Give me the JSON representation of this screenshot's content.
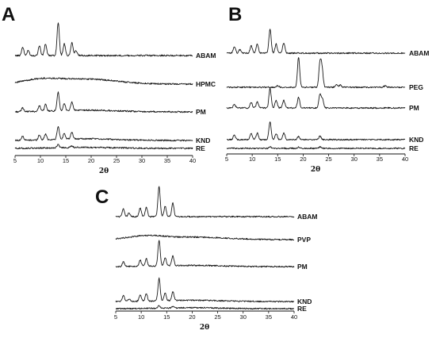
{
  "panels": [
    {
      "letter": "A",
      "chart_data": {
        "type": "line",
        "xlabel": "2θ",
        "xlim": [
          5,
          40
        ],
        "xticks": [
          5,
          10,
          15,
          20,
          25,
          30,
          35,
          40
        ],
        "series": [
          {
            "name": "ABAM",
            "peaks": [
              [
                6.5,
                0.25
              ],
              [
                7.6,
                0.15
              ],
              [
                9.8,
                0.3
              ],
              [
                11.0,
                0.35
              ],
              [
                13.5,
                1.0
              ],
              [
                14.7,
                0.35
              ],
              [
                16.2,
                0.4
              ],
              [
                17.0,
                0.15
              ]
            ]
          },
          {
            "name": "HPMC",
            "peaks": [],
            "halo": [
              [
                10,
                0.12,
                3.5
              ],
              [
                19,
                0.15,
                6
              ]
            ]
          },
          {
            "name": "PM",
            "peaks": [
              [
                6.5,
                0.12
              ],
              [
                9.8,
                0.18
              ],
              [
                11.0,
                0.2
              ],
              [
                13.5,
                0.55
              ],
              [
                14.7,
                0.2
              ],
              [
                16.2,
                0.25
              ]
            ],
            "halo": [
              [
                19,
                0.05,
                6
              ]
            ]
          },
          {
            "name": "KND",
            "peaks": [
              [
                6.5,
                0.12
              ],
              [
                9.8,
                0.15
              ],
              [
                11.0,
                0.17
              ],
              [
                13.5,
                0.38
              ],
              [
                14.7,
                0.18
              ],
              [
                16.2,
                0.2
              ]
            ],
            "halo": [
              [
                19,
                0.05,
                6
              ]
            ]
          },
          {
            "name": "RE",
            "peaks": [
              [
                13.5,
                0.1
              ],
              [
                16.2,
                0.05
              ]
            ],
            "halo": [
              [
                19,
                0.03,
                6
              ]
            ]
          }
        ]
      }
    },
    {
      "letter": "B",
      "chart_data": {
        "type": "line",
        "xlabel": "2θ",
        "xlim": [
          5,
          40
        ],
        "xticks": [
          5,
          10,
          15,
          20,
          25,
          30,
          35,
          40
        ],
        "series": [
          {
            "name": "ABAM",
            "peaks": [
              [
                6.5,
                0.22
              ],
              [
                7.6,
                0.12
              ],
              [
                9.8,
                0.25
              ],
              [
                11.0,
                0.3
              ],
              [
                13.5,
                0.8
              ],
              [
                14.7,
                0.3
              ],
              [
                16.2,
                0.35
              ]
            ]
          },
          {
            "name": "PEG",
            "peaks": [
              [
                15.0,
                0.06
              ],
              [
                19.1,
                1.0
              ],
              [
                23.3,
                0.8
              ],
              [
                23.7,
                0.6
              ],
              [
                26.5,
                0.1
              ],
              [
                27.3,
                0.08
              ],
              [
                36.1,
                0.05
              ]
            ]
          },
          {
            "name": "PM",
            "peaks": [
              [
                6.5,
                0.12
              ],
              [
                9.8,
                0.18
              ],
              [
                11.0,
                0.2
              ],
              [
                13.5,
                0.65
              ],
              [
                14.7,
                0.25
              ],
              [
                16.2,
                0.25
              ],
              [
                19.1,
                0.35
              ],
              [
                23.3,
                0.45
              ],
              [
                23.8,
                0.3
              ]
            ]
          },
          {
            "name": "KND",
            "peaks": [
              [
                6.5,
                0.15
              ],
              [
                9.8,
                0.2
              ],
              [
                11.0,
                0.22
              ],
              [
                13.5,
                0.6
              ],
              [
                14.7,
                0.2
              ],
              [
                16.2,
                0.22
              ],
              [
                19.1,
                0.1
              ],
              [
                23.3,
                0.12
              ]
            ]
          },
          {
            "name": "RE",
            "peaks": [
              [
                13.5,
                0.06
              ],
              [
                19.1,
                0.04
              ],
              [
                23.3,
                0.05
              ]
            ]
          }
        ]
      }
    },
    {
      "letter": "C",
      "chart_data": {
        "type": "line",
        "xlabel": "2θ",
        "xlim": [
          5,
          40
        ],
        "xticks": [
          5,
          10,
          15,
          20,
          25,
          30,
          35,
          40
        ],
        "series": [
          {
            "name": "ABAM",
            "peaks": [
              [
                6.5,
                0.25
              ],
              [
                7.6,
                0.12
              ],
              [
                9.8,
                0.28
              ],
              [
                11.0,
                0.32
              ],
              [
                13.5,
                1.0
              ],
              [
                14.7,
                0.35
              ],
              [
                16.2,
                0.45
              ]
            ]
          },
          {
            "name": "PVP",
            "peaks": [],
            "halo": [
              [
                11,
                0.12,
                3.5
              ],
              [
                21,
                0.08,
                6
              ]
            ]
          },
          {
            "name": "PM",
            "peaks": [
              [
                6.5,
                0.15
              ],
              [
                9.8,
                0.2
              ],
              [
                11.0,
                0.25
              ],
              [
                13.5,
                0.85
              ],
              [
                14.7,
                0.28
              ],
              [
                16.2,
                0.32
              ]
            ],
            "halo": [
              [
                20,
                0.04,
                6
              ]
            ]
          },
          {
            "name": "KND",
            "peaks": [
              [
                6.5,
                0.2
              ],
              [
                7.6,
                0.08
              ],
              [
                9.8,
                0.22
              ],
              [
                11.0,
                0.25
              ],
              [
                13.5,
                0.75
              ],
              [
                14.7,
                0.25
              ],
              [
                16.2,
                0.3
              ]
            ],
            "halo": [
              [
                20,
                0.04,
                6
              ]
            ]
          },
          {
            "name": "RE",
            "peaks": [
              [
                13.5,
                0.08
              ],
              [
                16.2,
                0.04
              ]
            ],
            "halo": [
              [
                20,
                0.03,
                6
              ]
            ]
          }
        ]
      }
    }
  ]
}
